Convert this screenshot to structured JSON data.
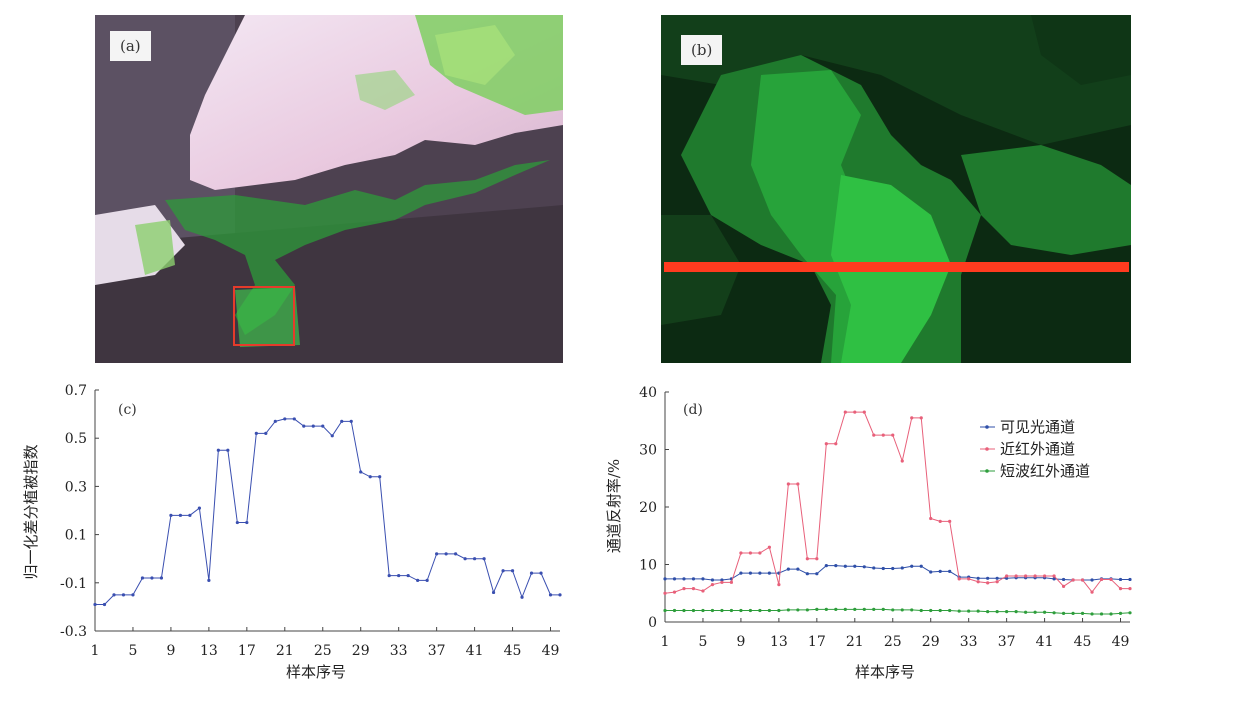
{
  "panels": {
    "a": {
      "label": "(a)"
    },
    "b": {
      "label": "(b)"
    }
  },
  "colors": {
    "ndvi": "#3a4fb0",
    "visible": "#2f4fa8",
    "nir": "#e8607a",
    "swir": "#2e9e3c",
    "red_box": "#e53b2b",
    "red_line": "#ff3b1f"
  },
  "chart_data": [
    {
      "type": "line",
      "panel_label": "(c)",
      "title": "",
      "xlabel": "样本序号",
      "ylabel": "归一化差分植被指数",
      "xticks": [
        1,
        5,
        9,
        13,
        17,
        21,
        25,
        29,
        33,
        37,
        41,
        45,
        49
      ],
      "yticks": [
        -0.3,
        -0.1,
        0.1,
        0.3,
        0.5,
        0.7
      ],
      "ytick_labels": [
        "-0.3",
        "-0.1",
        "0.1",
        "0.3",
        "0.5",
        "0.7"
      ],
      "xlim": [
        1,
        50
      ],
      "ylim": [
        -0.3,
        0.7
      ],
      "grid": false,
      "series": [
        {
          "x": [
            1,
            2,
            3,
            4,
            5,
            6,
            7,
            8,
            9,
            10,
            11,
            12,
            13,
            14,
            15,
            16,
            17,
            18,
            19,
            20,
            21,
            22,
            23,
            24,
            25,
            26,
            27,
            28,
            29,
            30,
            31,
            32,
            33,
            34,
            35,
            36,
            37,
            38,
            39,
            40,
            41,
            42,
            43,
            44,
            45,
            46,
            47,
            48,
            49,
            50
          ],
          "values": [
            -0.19,
            -0.19,
            -0.15,
            -0.15,
            -0.15,
            -0.08,
            -0.08,
            -0.08,
            0.18,
            0.18,
            0.18,
            0.21,
            -0.09,
            0.45,
            0.45,
            0.15,
            0.15,
            0.52,
            0.52,
            0.57,
            0.58,
            0.58,
            0.55,
            0.55,
            0.55,
            0.51,
            0.57,
            0.57,
            0.36,
            0.34,
            0.34,
            -0.07,
            -0.07,
            -0.07,
            -0.09,
            -0.09,
            0.02,
            0.02,
            0.02,
            0.0,
            0.0,
            0.0,
            -0.14,
            -0.05,
            -0.05,
            -0.16,
            -0.06,
            -0.06,
            -0.15,
            -0.15
          ]
        }
      ]
    },
    {
      "type": "line",
      "panel_label": "(d)",
      "title": "",
      "xlabel": "样本序号",
      "ylabel": "通道反射率/%",
      "xticks": [
        1,
        5,
        9,
        13,
        17,
        21,
        25,
        29,
        33,
        37,
        41,
        45,
        49
      ],
      "yticks": [
        0,
        10,
        20,
        30,
        40
      ],
      "xlim": [
        1,
        50
      ],
      "ylim": [
        0,
        40
      ],
      "grid": false,
      "legend_position": "top-right",
      "series": [
        {
          "name": "可见光通道",
          "color_key": "visible",
          "x": [
            1,
            2,
            3,
            4,
            5,
            6,
            7,
            8,
            9,
            10,
            11,
            12,
            13,
            14,
            15,
            16,
            17,
            18,
            19,
            20,
            21,
            22,
            23,
            24,
            25,
            26,
            27,
            28,
            29,
            30,
            31,
            32,
            33,
            34,
            35,
            36,
            37,
            38,
            39,
            40,
            41,
            42,
            43,
            44,
            45,
            46,
            47,
            48,
            49,
            50
          ],
          "values": [
            7.5,
            7.5,
            7.5,
            7.5,
            7.5,
            7.3,
            7.3,
            7.5,
            8.5,
            8.5,
            8.5,
            8.5,
            8.5,
            9.2,
            9.2,
            8.4,
            8.4,
            9.8,
            9.8,
            9.7,
            9.7,
            9.6,
            9.4,
            9.3,
            9.3,
            9.4,
            9.7,
            9.7,
            8.7,
            8.8,
            8.8,
            7.8,
            7.8,
            7.6,
            7.6,
            7.6,
            7.6,
            7.7,
            7.7,
            7.7,
            7.7,
            7.5,
            7.4,
            7.3,
            7.3,
            7.3,
            7.5,
            7.5,
            7.4,
            7.4
          ]
        },
        {
          "name": "近红外通道",
          "color_key": "nir",
          "x": [
            1,
            2,
            3,
            4,
            5,
            6,
            7,
            8,
            9,
            10,
            11,
            12,
            13,
            14,
            15,
            16,
            17,
            18,
            19,
            20,
            21,
            22,
            23,
            24,
            25,
            26,
            27,
            28,
            29,
            30,
            31,
            32,
            33,
            34,
            35,
            36,
            37,
            38,
            39,
            40,
            41,
            42,
            43,
            44,
            45,
            46,
            47,
            48,
            49,
            50
          ],
          "values": [
            5.0,
            5.2,
            5.8,
            5.8,
            5.4,
            6.5,
            6.9,
            6.9,
            12.0,
            12.0,
            12.0,
            13.0,
            6.5,
            24.0,
            24.0,
            11.0,
            11.0,
            31.0,
            31.0,
            36.5,
            36.5,
            36.5,
            32.5,
            32.5,
            32.5,
            28.0,
            35.5,
            35.5,
            18.0,
            17.5,
            17.5,
            7.5,
            7.5,
            7.0,
            6.8,
            7.0,
            8.0,
            8.0,
            8.0,
            8.0,
            8.0,
            8.0,
            6.2,
            7.3,
            7.3,
            5.2,
            7.4,
            7.4,
            5.8,
            5.8
          ]
        },
        {
          "name": "短波红外通道",
          "color_key": "swir",
          "x": [
            1,
            2,
            3,
            4,
            5,
            6,
            7,
            8,
            9,
            10,
            11,
            12,
            13,
            14,
            15,
            16,
            17,
            18,
            19,
            20,
            21,
            22,
            23,
            24,
            25,
            26,
            27,
            28,
            29,
            30,
            31,
            32,
            33,
            34,
            35,
            36,
            37,
            38,
            39,
            40,
            41,
            42,
            43,
            44,
            45,
            46,
            47,
            48,
            49,
            50
          ],
          "values": [
            2.0,
            2.0,
            2.0,
            2.0,
            2.0,
            2.0,
            2.0,
            2.0,
            2.0,
            2.0,
            2.0,
            2.0,
            2.0,
            2.1,
            2.1,
            2.1,
            2.2,
            2.2,
            2.2,
            2.2,
            2.2,
            2.2,
            2.2,
            2.2,
            2.1,
            2.1,
            2.1,
            2.0,
            2.0,
            2.0,
            2.0,
            1.9,
            1.9,
            1.9,
            1.8,
            1.8,
            1.8,
            1.8,
            1.7,
            1.7,
            1.7,
            1.6,
            1.5,
            1.5,
            1.5,
            1.4,
            1.4,
            1.4,
            1.5,
            1.6
          ]
        }
      ]
    }
  ]
}
